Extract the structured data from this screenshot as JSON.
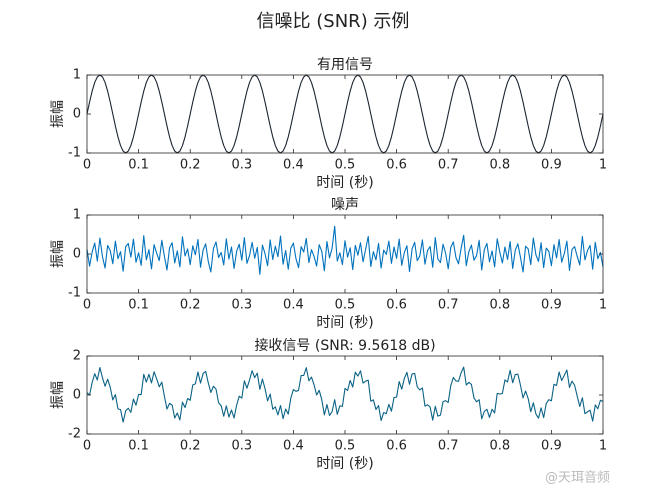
{
  "title": "信噪比 (SNR) 示例",
  "watermark": "@天珥音频",
  "chart_data": [
    {
      "type": "line",
      "title": "有用信号",
      "xlabel": "时间 (秒)",
      "ylabel": "振幅",
      "color": "#1c2633",
      "xlim": [
        0,
        1
      ],
      "ylim": [
        -1,
        1
      ],
      "xticks": [
        0,
        0.1,
        0.2,
        0.3,
        0.4,
        0.5,
        0.6,
        0.7,
        0.8,
        0.9,
        1
      ],
      "yticks": [
        -1,
        0,
        1
      ],
      "x": [
        0,
        0.005,
        0.01,
        0.015,
        0.02,
        0.025,
        0.03,
        0.035,
        0.04,
        0.045,
        0.05,
        0.055,
        0.06,
        0.065,
        0.07,
        0.075,
        0.08,
        0.085,
        0.09,
        0.095,
        0.1,
        0.105,
        0.11,
        0.115,
        0.12,
        0.125,
        0.13,
        0.135,
        0.14,
        0.145,
        0.15,
        0.155,
        0.16,
        0.165,
        0.17,
        0.175,
        0.18,
        0.185,
        0.19,
        0.195,
        0.2,
        0.205,
        0.21,
        0.215,
        0.22,
        0.225,
        0.23,
        0.235,
        0.24,
        0.245,
        0.25,
        0.255,
        0.26,
        0.265,
        0.27,
        0.275,
        0.28,
        0.285,
        0.29,
        0.295,
        0.3,
        0.305,
        0.31,
        0.315,
        0.32,
        0.325,
        0.33,
        0.335,
        0.34,
        0.345,
        0.35,
        0.355,
        0.36,
        0.365,
        0.37,
        0.375,
        0.38,
        0.385,
        0.39,
        0.395,
        0.4,
        0.405,
        0.41,
        0.415,
        0.42,
        0.425,
        0.43,
        0.435,
        0.44,
        0.445,
        0.45,
        0.455,
        0.46,
        0.465,
        0.47,
        0.475,
        0.48,
        0.485,
        0.49,
        0.495,
        0.5,
        0.505,
        0.51,
        0.515,
        0.52,
        0.525,
        0.53,
        0.535,
        0.54,
        0.545,
        0.55,
        0.555,
        0.56,
        0.565,
        0.57,
        0.575,
        0.58,
        0.585,
        0.59,
        0.595,
        0.6,
        0.605,
        0.61,
        0.615,
        0.62,
        0.625,
        0.63,
        0.635,
        0.64,
        0.645,
        0.65,
        0.655,
        0.66,
        0.665,
        0.67,
        0.675,
        0.68,
        0.685,
        0.69,
        0.695,
        0.7,
        0.705,
        0.71,
        0.715,
        0.72,
        0.725,
        0.73,
        0.735,
        0.74,
        0.745,
        0.75,
        0.755,
        0.76,
        0.765,
        0.77,
        0.775,
        0.78,
        0.785,
        0.79,
        0.795,
        0.8,
        0.805,
        0.81,
        0.815,
        0.82,
        0.825,
        0.83,
        0.835,
        0.84,
        0.845,
        0.85,
        0.855,
        0.86,
        0.865,
        0.87,
        0.875,
        0.88,
        0.885,
        0.89,
        0.895,
        0.9,
        0.905,
        0.91,
        0.915,
        0.92,
        0.925,
        0.93,
        0.935,
        0.94,
        0.945,
        0.95,
        0.955,
        0.96,
        0.965,
        0.97,
        0.975,
        0.98,
        0.985,
        0.99,
        0.995,
        1
      ],
      "values": [
        0,
        0.309,
        0.588,
        0.809,
        0.951,
        1,
        0.951,
        0.809,
        0.588,
        0.309,
        0,
        -0.309,
        -0.588,
        -0.809,
        -0.951,
        -1,
        -0.951,
        -0.809,
        -0.588,
        -0.309,
        0,
        0.309,
        0.588,
        0.809,
        0.951,
        1,
        0.951,
        0.809,
        0.588,
        0.309,
        0,
        -0.309,
        -0.588,
        -0.809,
        -0.951,
        -1,
        -0.951,
        -0.809,
        -0.588,
        -0.309,
        0,
        0.309,
        0.588,
        0.809,
        0.951,
        1,
        0.951,
        0.809,
        0.588,
        0.309,
        0,
        -0.309,
        -0.588,
        -0.809,
        -0.951,
        -1,
        -0.951,
        -0.809,
        -0.588,
        -0.309,
        0,
        0.309,
        0.588,
        0.809,
        0.951,
        1,
        0.951,
        0.809,
        0.588,
        0.309,
        0,
        -0.309,
        -0.588,
        -0.809,
        -0.951,
        -1,
        -0.951,
        -0.809,
        -0.588,
        -0.309,
        0,
        0.309,
        0.588,
        0.809,
        0.951,
        1,
        0.951,
        0.809,
        0.588,
        0.309,
        0,
        -0.309,
        -0.588,
        -0.809,
        -0.951,
        -1,
        -0.951,
        -0.809,
        -0.588,
        -0.309,
        0,
        0.309,
        0.588,
        0.809,
        0.951,
        1,
        0.951,
        0.809,
        0.588,
        0.309,
        0,
        -0.309,
        -0.588,
        -0.809,
        -0.951,
        -1,
        -0.951,
        -0.809,
        -0.588,
        -0.309,
        0,
        0.309,
        0.588,
        0.809,
        0.951,
        1,
        0.951,
        0.809,
        0.588,
        0.309,
        0,
        -0.309,
        -0.588,
        -0.809,
        -0.951,
        -1,
        -0.951,
        -0.809,
        -0.588,
        -0.309,
        0,
        0.309,
        0.588,
        0.809,
        0.951,
        1,
        0.951,
        0.809,
        0.588,
        0.309,
        0,
        -0.309,
        -0.588,
        -0.809,
        -0.951,
        -1,
        -0.951,
        -0.809,
        -0.588,
        -0.309,
        0,
        0.309,
        0.588,
        0.809,
        0.951,
        1,
        0.951,
        0.809,
        0.588,
        0.309,
        0,
        -0.309,
        -0.588,
        -0.809,
        -0.951,
        -1,
        -0.951,
        -0.809,
        -0.588,
        -0.309,
        0,
        0.309,
        0.588,
        0.809,
        0.951,
        1,
        0.951,
        0.809,
        0.588,
        0.309,
        0,
        -0.309,
        -0.588,
        -0.809,
        -0.951,
        -1,
        -0.951,
        -0.809,
        -0.588,
        -0.309,
        0
      ]
    },
    {
      "type": "line",
      "title": "噪声",
      "xlabel": "时间 (秒)",
      "ylabel": "振幅",
      "color": "#0072bd",
      "xlim": [
        0,
        1
      ],
      "ylim": [
        -1,
        1
      ],
      "xticks": [
        0,
        0.1,
        0.2,
        0.3,
        0.4,
        0.5,
        0.6,
        0.7,
        0.8,
        0.9,
        1
      ],
      "yticks": [
        -1,
        0,
        1
      ],
      "x": [
        0,
        0.005,
        0.01,
        0.015,
        0.02,
        0.025,
        0.03,
        0.035,
        0.04,
        0.045,
        0.05,
        0.055,
        0.06,
        0.065,
        0.07,
        0.075,
        0.08,
        0.085,
        0.09,
        0.095,
        0.1,
        0.105,
        0.11,
        0.115,
        0.12,
        0.125,
        0.13,
        0.135,
        0.14,
        0.145,
        0.15,
        0.155,
        0.16,
        0.165,
        0.17,
        0.175,
        0.18,
        0.185,
        0.19,
        0.195,
        0.2,
        0.205,
        0.21,
        0.215,
        0.22,
        0.225,
        0.23,
        0.235,
        0.24,
        0.245,
        0.25,
        0.255,
        0.26,
        0.265,
        0.27,
        0.275,
        0.28,
        0.285,
        0.29,
        0.295,
        0.3,
        0.305,
        0.31,
        0.315,
        0.32,
        0.325,
        0.33,
        0.335,
        0.34,
        0.345,
        0.35,
        0.355,
        0.36,
        0.365,
        0.37,
        0.375,
        0.38,
        0.385,
        0.39,
        0.395,
        0.4,
        0.405,
        0.41,
        0.415,
        0.42,
        0.425,
        0.43,
        0.435,
        0.44,
        0.445,
        0.45,
        0.455,
        0.46,
        0.465,
        0.47,
        0.475,
        0.48,
        0.485,
        0.49,
        0.495,
        0.5,
        0.505,
        0.51,
        0.515,
        0.52,
        0.525,
        0.53,
        0.535,
        0.54,
        0.545,
        0.55,
        0.555,
        0.56,
        0.565,
        0.57,
        0.575,
        0.58,
        0.585,
        0.59,
        0.595,
        0.6,
        0.605,
        0.61,
        0.615,
        0.62,
        0.625,
        0.63,
        0.635,
        0.64,
        0.645,
        0.65,
        0.655,
        0.66,
        0.665,
        0.67,
        0.675,
        0.68,
        0.685,
        0.69,
        0.695,
        0.7,
        0.705,
        0.71,
        0.715,
        0.72,
        0.725,
        0.73,
        0.735,
        0.74,
        0.745,
        0.75,
        0.755,
        0.76,
        0.765,
        0.77,
        0.775,
        0.78,
        0.785,
        0.79,
        0.795,
        0.8,
        0.805,
        0.81,
        0.815,
        0.82,
        0.825,
        0.83,
        0.835,
        0.84,
        0.845,
        0.85,
        0.855,
        0.86,
        0.865,
        0.87,
        0.875,
        0.88,
        0.885,
        0.89,
        0.895,
        0.9,
        0.905,
        0.91,
        0.915,
        0.92,
        0.925,
        0.93,
        0.935,
        0.94,
        0.945,
        0.95,
        0.955,
        0.96,
        0.965,
        0.97,
        0.975,
        0.98,
        0.985,
        0.99,
        0.995,
        1
      ],
      "values": [
        0.12,
        -0.31,
        0.05,
        0.28,
        -0.18,
        0.41,
        -0.07,
        -0.36,
        0.22,
        0.09,
        -0.25,
        0.33,
        -0.12,
        0.06,
        -0.44,
        0.19,
        0.27,
        -0.08,
        0.38,
        -0.21,
        0.03,
        -0.29,
        0.47,
        -0.15,
        0.11,
        -0.38,
        0.24,
        0.02,
        -0.17,
        0.35,
        -0.06,
        -0.41,
        0.16,
        0.29,
        -0.23,
        0.08,
        -0.33,
        0.44,
        -0.05,
        0.13,
        -0.27,
        0.21,
        -0.02,
        0.37,
        -0.34,
        0.1,
        0.26,
        -0.19,
        -0.46,
        0.14,
        0.31,
        -0.09,
        0.04,
        -0.28,
        0.39,
        -0.13,
        0.18,
        -0.37,
        0.07,
        0.25,
        -0.16,
        0.42,
        -0.24,
        -0.04,
        0.3,
        -0.11,
        0.17,
        -0.52,
        0.23,
        0.01,
        -0.3,
        0.36,
        -0.14,
        0.2,
        -0.07,
        0.46,
        -0.26,
        0.09,
        -0.39,
        0.15,
        0.28,
        -0.12,
        -0.35,
        0.19,
        0.05,
        0.4,
        -0.22,
        0.11,
        -0.06,
        -0.31,
        0.24,
        0.07,
        -0.43,
        0.32,
        -0.1,
        0.15,
        0.71,
        -0.18,
        0.03,
        -0.27,
        0.34,
        -0.08,
        0.16,
        -0.4,
        0.22,
        -0.03,
        0.29,
        -0.2,
        0.12,
        0.45,
        -0.32,
        0.06,
        -0.15,
        0.27,
        -0.36,
        0.1,
        -0.01,
        0.33,
        -0.24,
        0.18,
        -0.11,
        0.38,
        -0.29,
        0.04,
        0.21,
        -0.45,
        0.13,
        0.3,
        -0.17,
        -0.05,
        0.36,
        -0.26,
        0.09,
        0.19,
        -0.34,
        0.42,
        -0.13,
        -0.22,
        0.25,
        0.02,
        -0.38,
        0.17,
        0.31,
        -0.09,
        -0.25,
        0.14,
        0.48,
        -0.3,
        0.06,
        0.23,
        -0.16,
        -0.04,
        0.35,
        -0.41,
        0.11,
        0.27,
        -0.2,
        0.08,
        -0.33,
        0.39,
        0.05,
        -0.23,
        0.18,
        -0.14,
        0.32,
        -0.37,
        0.1,
        0.26,
        -0.08,
        -0.46,
        0.2,
        0.13,
        -0.27,
        0.41,
        -0.02,
        -0.19,
        0.29,
        -0.35,
        0.15,
        0.07,
        -0.3,
        0.24,
        -0.1,
        0.37,
        -0.21,
        0.01,
        0.33,
        -0.42,
        0.12,
        0.19,
        -0.06,
        -0.28,
        0.45,
        -0.15,
        0.09,
        0.22,
        -0.39,
        0.3,
        -0.12,
        0.04,
        -0.33
      ]
    },
    {
      "type": "line",
      "title": "接收信号 (SNR: 9.5618 dB)",
      "xlabel": "时间 (秒)",
      "ylabel": "振幅",
      "color": "#0b6386",
      "xlim": [
        0,
        1
      ],
      "ylim": [
        -2,
        2
      ],
      "xticks": [
        0,
        0.1,
        0.2,
        0.3,
        0.4,
        0.5,
        0.6,
        0.7,
        0.8,
        0.9,
        1
      ],
      "yticks": [
        -2,
        0,
        2
      ],
      "x": [
        0,
        0.005,
        0.01,
        0.015,
        0.02,
        0.025,
        0.03,
        0.035,
        0.04,
        0.045,
        0.05,
        0.055,
        0.06,
        0.065,
        0.07,
        0.075,
        0.08,
        0.085,
        0.09,
        0.095,
        0.1,
        0.105,
        0.11,
        0.115,
        0.12,
        0.125,
        0.13,
        0.135,
        0.14,
        0.145,
        0.15,
        0.155,
        0.16,
        0.165,
        0.17,
        0.175,
        0.18,
        0.185,
        0.19,
        0.195,
        0.2,
        0.205,
        0.21,
        0.215,
        0.22,
        0.225,
        0.23,
        0.235,
        0.24,
        0.245,
        0.25,
        0.255,
        0.26,
        0.265,
        0.27,
        0.275,
        0.28,
        0.285,
        0.29,
        0.295,
        0.3,
        0.305,
        0.31,
        0.315,
        0.32,
        0.325,
        0.33,
        0.335,
        0.34,
        0.345,
        0.35,
        0.355,
        0.36,
        0.365,
        0.37,
        0.375,
        0.38,
        0.385,
        0.39,
        0.395,
        0.4,
        0.405,
        0.41,
        0.415,
        0.42,
        0.425,
        0.43,
        0.435,
        0.44,
        0.445,
        0.45,
        0.455,
        0.46,
        0.465,
        0.47,
        0.475,
        0.48,
        0.485,
        0.49,
        0.495,
        0.5,
        0.505,
        0.51,
        0.515,
        0.52,
        0.525,
        0.53,
        0.535,
        0.54,
        0.545,
        0.55,
        0.555,
        0.56,
        0.565,
        0.57,
        0.575,
        0.58,
        0.585,
        0.59,
        0.595,
        0.6,
        0.605,
        0.61,
        0.615,
        0.62,
        0.625,
        0.63,
        0.635,
        0.64,
        0.645,
        0.65,
        0.655,
        0.66,
        0.665,
        0.67,
        0.675,
        0.68,
        0.685,
        0.69,
        0.695,
        0.7,
        0.705,
        0.71,
        0.715,
        0.72,
        0.725,
        0.73,
        0.735,
        0.74,
        0.745,
        0.75,
        0.755,
        0.76,
        0.765,
        0.77,
        0.775,
        0.78,
        0.785,
        0.79,
        0.795,
        0.8,
        0.805,
        0.81,
        0.815,
        0.82,
        0.825,
        0.83,
        0.835,
        0.84,
        0.845,
        0.85,
        0.855,
        0.86,
        0.865,
        0.87,
        0.875,
        0.88,
        0.885,
        0.89,
        0.895,
        0.9,
        0.905,
        0.91,
        0.915,
        0.92,
        0.925,
        0.93,
        0.935,
        0.94,
        0.945,
        0.95,
        0.955,
        0.96,
        0.965,
        0.97,
        0.975,
        0.98,
        0.985,
        0.99,
        0.995,
        1
      ],
      "values": [
        0.12,
        0,
        0.64,
        1.09,
        0.77,
        1.41,
        0.88,
        0.45,
        0.81,
        0.4,
        -0.25,
        0.02,
        -0.71,
        -0.75,
        -1.39,
        -0.81,
        -0.68,
        -0.89,
        -0.21,
        -0.52,
        0.03,
        0.02,
        1.06,
        0.66,
        1.06,
        0.62,
        1.19,
        0.83,
        0.42,
        0.66,
        -0.06,
        -0.72,
        -0.43,
        -0.52,
        -1.18,
        -0.92,
        -1.28,
        -0.37,
        -0.64,
        -0.18,
        -0.27,
        0.52,
        0.57,
        1.18,
        0.61,
        1.1,
        1.21,
        0.62,
        0.13,
        0.45,
        0.31,
        -0.4,
        -0.55,
        -1.09,
        -0.56,
        -1.13,
        -0.77,
        -1.18,
        -0.52,
        -0.06,
        -0.16,
        0.73,
        0.35,
        0.77,
        1.25,
        0.89,
        1.12,
        0.29,
        0.82,
        0.32,
        -0.3,
        0.05,
        -0.73,
        -0.61,
        -1.02,
        -0.54,
        -1.21,
        -0.72,
        -0.98,
        -0.16,
        0.28,
        0.19,
        0.24,
        1,
        1,
        1.4,
        0.73,
        0.92,
        0.53,
        0,
        0.24,
        -0.24,
        -1.02,
        -0.49,
        -1.05,
        -0.85,
        -0.24,
        -0.99,
        -0.56,
        -0.58,
        0.34,
        0.23,
        0.75,
        0.41,
        1.17,
        0.97,
        1.24,
        0.61,
        0.71,
        0.76,
        -0.32,
        -0.25,
        -0.74,
        -0.54,
        -1.31,
        -0.9,
        -0.96,
        -0.48,
        -0.83,
        -0.13,
        -0.11,
        0.69,
        0.3,
        0.85,
        1.16,
        0.55,
        1.08,
        1.11,
        0.42,
        0.26,
        0.36,
        -0.57,
        -0.5,
        -0.62,
        -1.29,
        -0.58,
        -1.08,
        -1.03,
        -0.34,
        -0.29,
        -0.38,
        0.48,
        0.9,
        0.72,
        0.7,
        1.14,
        1.43,
        0.51,
        0.65,
        0.54,
        -0.16,
        -0.35,
        -0.24,
        -1.22,
        -0.84,
        -0.73,
        -1.15,
        -0.73,
        -0.92,
        0.08,
        0.05,
        0.08,
        0.77,
        0.67,
        1.27,
        0.63,
        1.05,
        1.07,
        0.51,
        -0.15,
        0.2,
        -0.18,
        -0.86,
        -0.4,
        -0.97,
        -1.19,
        -0.66,
        -1.16,
        -0.44,
        -0.24,
        -0.3,
        0.55,
        0.49,
        1.18,
        0.74,
        1.01,
        1.28,
        0.39,
        0.71,
        0.5,
        -0.06,
        -0.59,
        -0.14,
        -0.96,
        -0.86,
        -0.78,
        -1.34,
        -0.51,
        -0.71,
        -0.27,
        -0.33
      ]
    }
  ]
}
